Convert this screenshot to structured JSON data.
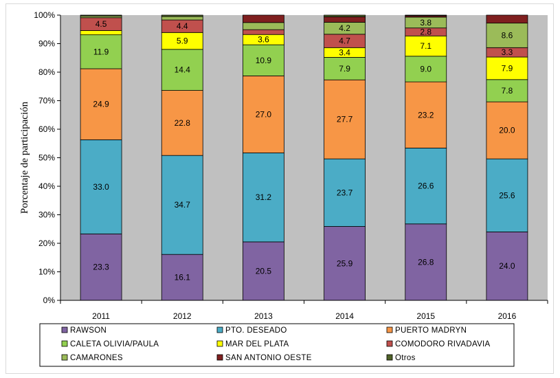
{
  "chart_data": {
    "type": "bar",
    "stacked": true,
    "ylabel": "Porcentaje de participación",
    "xlabel": "",
    "ylim": [
      0,
      100
    ],
    "y_ticks": [
      "0%",
      "10%",
      "20%",
      "30%",
      "40%",
      "50%",
      "60%",
      "70%",
      "80%",
      "90%",
      "100%"
    ],
    "grid": false,
    "plot_background": "#c0c0c0",
    "legend_position": "bottom",
    "categories": [
      "2011",
      "2012",
      "2013",
      "2014",
      "2015",
      "2016"
    ],
    "series": [
      {
        "name": "RAWSON",
        "color": "#8064a2",
        "values": [
          23.3,
          16.1,
          20.5,
          25.9,
          26.8,
          24.0
        ],
        "labeled": [
          true,
          true,
          true,
          true,
          true,
          true
        ]
      },
      {
        "name": "PTO. DESEADO",
        "color": "#4bacc6",
        "values": [
          33.0,
          34.7,
          31.2,
          23.7,
          26.6,
          25.6
        ],
        "labeled": [
          true,
          true,
          true,
          true,
          true,
          true
        ]
      },
      {
        "name": "PUERTO MADRYN",
        "color": "#f79646",
        "values": [
          24.9,
          22.8,
          27.0,
          27.7,
          23.2,
          20.0
        ],
        "labeled": [
          true,
          true,
          true,
          true,
          true,
          true
        ]
      },
      {
        "name": "CALETA OLIVIA/PAULA",
        "color": "#92d050",
        "values": [
          11.9,
          14.4,
          10.9,
          7.9,
          9.0,
          7.8
        ],
        "labeled": [
          true,
          true,
          true,
          true,
          true,
          true
        ]
      },
      {
        "name": "MAR DEL PLATA",
        "color": "#ffff00",
        "values": [
          1.5,
          5.9,
          3.6,
          3.4,
          7.1,
          7.9
        ],
        "labeled": [
          false,
          true,
          true,
          true,
          true,
          true
        ]
      },
      {
        "name": "COMODORO RIVADAVIA",
        "color": "#c0504d",
        "values": [
          4.5,
          4.4,
          1.7,
          4.7,
          2.8,
          3.3
        ],
        "labeled": [
          true,
          true,
          false,
          true,
          true,
          true
        ]
      },
      {
        "name": "CAMARONES",
        "color": "#9bbb59",
        "values": [
          0.6,
          1.2,
          2.5,
          4.2,
          3.8,
          8.6
        ],
        "labeled": [
          false,
          false,
          false,
          true,
          true,
          true
        ]
      },
      {
        "name": "SAN ANTONIO OESTE",
        "color": "#7f1f1f",
        "values": [
          0.0,
          0.0,
          2.6,
          1.9,
          0.5,
          2.8
        ],
        "labeled": [
          false,
          false,
          false,
          false,
          false,
          false
        ]
      },
      {
        "name": "Otros",
        "color": "#4f6228",
        "values": [
          0.3,
          0.5,
          0.0,
          0.6,
          0.2,
          0.0
        ],
        "labeled": [
          false,
          false,
          false,
          false,
          false,
          false
        ]
      }
    ]
  }
}
